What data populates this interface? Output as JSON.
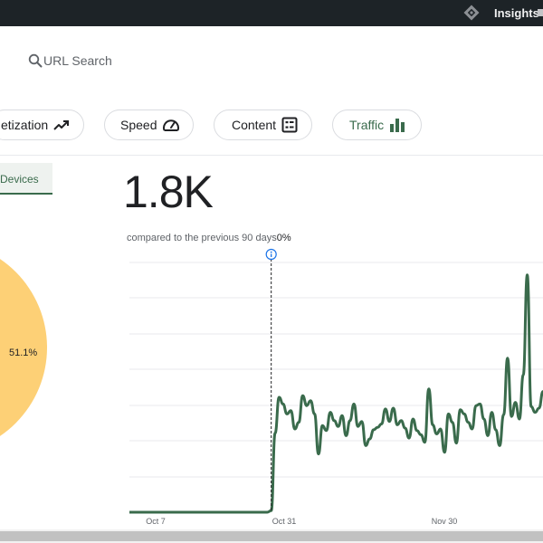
{
  "topbar": {
    "insights_label": "Insights"
  },
  "search": {
    "placeholder": "URL Search"
  },
  "tabs": [
    {
      "label": "etization",
      "icon": "trending-up-icon"
    },
    {
      "label": "Speed",
      "icon": "speedometer-icon"
    },
    {
      "label": "Content",
      "icon": "list-icon"
    },
    {
      "label": "Traffic",
      "icon": "bar-chart-icon",
      "color": "#3a6b4c"
    }
  ],
  "devices_tab": {
    "label": "Devices"
  },
  "pie": {
    "slice_label": "51.1%",
    "color": "#fdd076"
  },
  "metric": {
    "value": "1.8K",
    "compare_text": "compared to the previous 90 days",
    "compare_pct": "0%"
  },
  "chart_data": {
    "type": "line",
    "line_color": "#3a6b4c",
    "x_labels": [
      "Oct 7",
      "Oct 31",
      "Nov 30"
    ],
    "marker_icon": "info-icon",
    "grid": true,
    "values": [
      0,
      0,
      0,
      0,
      0,
      0,
      0,
      0,
      0,
      0,
      0,
      0,
      0,
      0,
      0,
      0,
      0,
      0,
      0,
      0,
      0,
      0,
      0,
      0,
      0,
      0,
      0,
      0,
      0,
      0,
      0,
      0,
      0,
      0,
      0,
      0,
      2,
      95,
      138,
      130,
      118,
      122,
      100,
      108,
      140,
      128,
      134,
      118,
      70,
      104,
      98,
      120,
      110,
      103,
      116,
      92,
      110,
      130,
      103,
      109,
      80,
      88,
      99,
      102,
      106,
      124,
      109,
      125,
      105,
      110,
      101,
      89,
      112,
      98,
      93,
      84,
      148,
      105,
      94,
      100,
      72,
      118,
      108,
      83,
      123,
      118,
      108,
      100,
      128,
      130,
      112,
      92,
      120,
      99,
      80,
      117,
      185,
      115,
      132,
      112,
      165,
      285,
      127,
      120,
      125,
      145
    ]
  }
}
